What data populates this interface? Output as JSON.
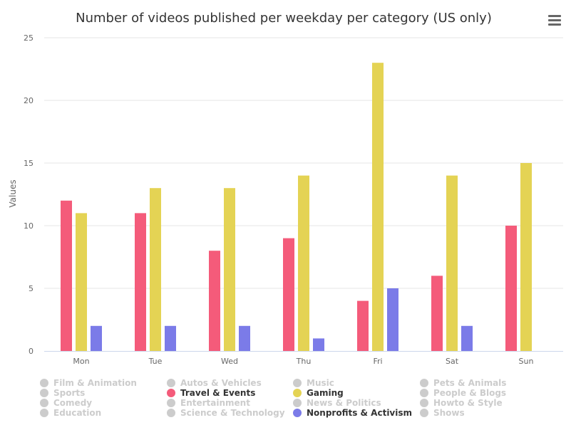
{
  "chart_data": {
    "type": "bar",
    "title": "Number of videos published per weekday per category (US only)",
    "xlabel": "",
    "ylabel": "Values",
    "ylim": [
      0,
      25
    ],
    "yticks": [
      0,
      5,
      10,
      15,
      20,
      25
    ],
    "grid": true,
    "legend_position": "bottom",
    "categories": [
      "Mon",
      "Tue",
      "Wed",
      "Thu",
      "Fri",
      "Sat",
      "Sun"
    ],
    "series": [
      {
        "name": "Travel & Events",
        "color": "#f45b7a",
        "values": [
          12,
          11,
          8,
          9,
          4,
          6,
          10
        ]
      },
      {
        "name": "Gaming",
        "color": "#e4d354",
        "values": [
          11,
          13,
          13,
          14,
          23,
          14,
          15
        ]
      },
      {
        "name": "Nonprofits & Activism",
        "color": "#7b7be8",
        "values": [
          2,
          2,
          2,
          1,
          5,
          2,
          0
        ]
      }
    ],
    "legend": [
      {
        "name": "Film & Animation",
        "visible": false
      },
      {
        "name": "Autos & Vehicles",
        "visible": false
      },
      {
        "name": "Music",
        "visible": false
      },
      {
        "name": "Pets & Animals",
        "visible": false
      },
      {
        "name": "Sports",
        "visible": false
      },
      {
        "name": "Travel & Events",
        "visible": true,
        "color": "#f45b7a"
      },
      {
        "name": "Gaming",
        "visible": true,
        "color": "#e4d354"
      },
      {
        "name": "People & Blogs",
        "visible": false
      },
      {
        "name": "Comedy",
        "visible": false
      },
      {
        "name": "Entertainment",
        "visible": false
      },
      {
        "name": "News & Politics",
        "visible": false
      },
      {
        "name": "Howto & Style",
        "visible": false
      },
      {
        "name": "Education",
        "visible": false
      },
      {
        "name": "Science & Technology",
        "visible": false
      },
      {
        "name": "Nonprofits & Activism",
        "visible": true,
        "color": "#7b7be8"
      },
      {
        "name": "Shows",
        "visible": false
      }
    ],
    "hidden_color": "#cccccc"
  },
  "menu": {
    "icon": "hamburger-menu-icon"
  }
}
